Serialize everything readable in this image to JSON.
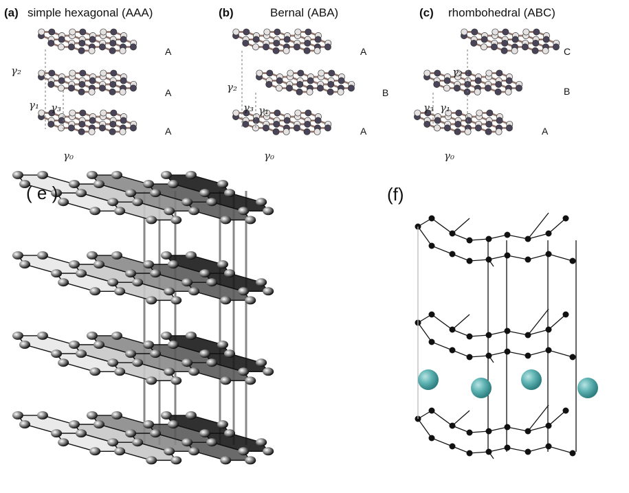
{
  "panels": {
    "a": {
      "letter": "(a)",
      "title": "simple hexagonal (AAA)",
      "layers": [
        "A",
        "A",
        "A"
      ],
      "gammas": [
        "γ₂",
        "γ₁",
        "γ₃",
        "γ₀"
      ]
    },
    "b": {
      "letter": "(b)",
      "title": "Bernal (ABA)",
      "layers": [
        "A",
        "B",
        "A"
      ],
      "gammas": [
        "γ₂",
        "γ₃",
        "γ₁",
        "γ₀"
      ]
    },
    "c": {
      "letter": "(c)",
      "title": "rhombohedral (ABC)",
      "layers": [
        "C",
        "B",
        "A"
      ],
      "gammas": [
        "γ₂",
        "γ₃",
        "γ₁",
        "γ₀"
      ]
    },
    "e": {
      "letter": "( e )"
    },
    "f": {
      "letter": "(f)"
    }
  },
  "colors": {
    "atom_dark": "#4a4458",
    "atom_light": "#e6e2e2",
    "bond": "#b89a8e",
    "sheet_light": "#e8e8e8",
    "sheet_mid": "#8a8a8a",
    "sheet_dark": "#1a1a1a",
    "intercalant": "#5fb3b3"
  }
}
